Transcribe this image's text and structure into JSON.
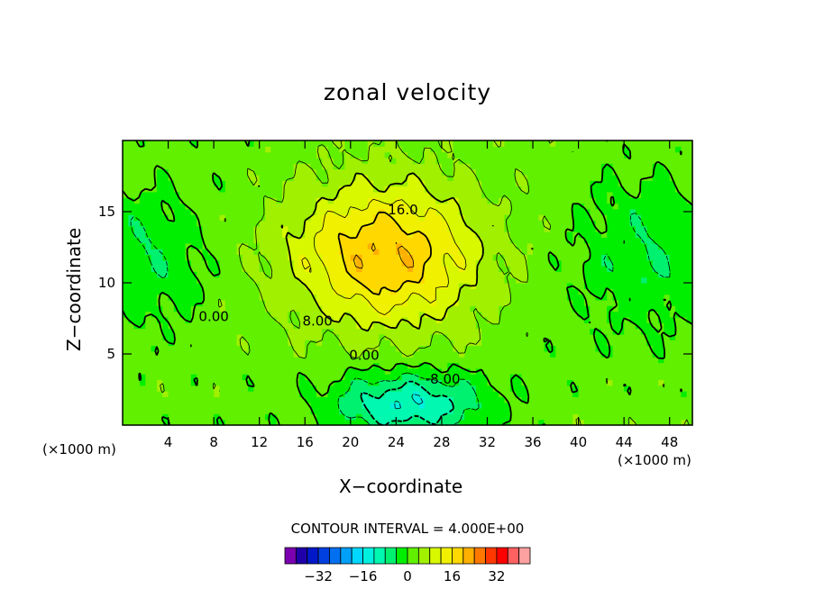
{
  "chart_data": {
    "type": "heatmap",
    "title": "zonal velocity",
    "xlabel": "X−coordinate",
    "ylabel": "Z−coordinate",
    "x_unit_label": "(×1000 m)",
    "z_unit_label": "(×1000 m)",
    "xlim": [
      0,
      50
    ],
    "ylim": [
      0,
      20
    ],
    "x_ticks": [
      4,
      8,
      12,
      16,
      20,
      24,
      28,
      32,
      36,
      40,
      44,
      48
    ],
    "y_ticks": [
      5,
      10,
      15
    ],
    "contour_interval_text": "CONTOUR INTERVAL = 4.000E+00",
    "contour_labels": [
      {
        "text": "16.0",
        "x": 24.6,
        "z": 14.8
      },
      {
        "text": "8.00",
        "x": 17.1,
        "z": 7.0
      },
      {
        "text": "0.00",
        "x": 8.0,
        "z": 7.3
      },
      {
        "text": "0.00",
        "x": 21.2,
        "z": 4.6
      },
      {
        "text": "-8.00",
        "x": 28.1,
        "z": 2.9
      }
    ],
    "colorbar": {
      "ticks": [
        -32,
        -16,
        0,
        16,
        32
      ],
      "tick_labels": [
        "−32",
        "−16",
        "0",
        "16",
        "32"
      ],
      "colors": [
        "#7b00b0",
        "#1f00a8",
        "#0018c8",
        "#0040e0",
        "#0070f0",
        "#00a0f8",
        "#00d8ff",
        "#00f0e0",
        "#00f8b0",
        "#00f070",
        "#00ee00",
        "#60f000",
        "#a0f000",
        "#d8f800",
        "#f0f000",
        "#ffd800",
        "#ffb000",
        "#ff7800",
        "#ff3800",
        "#ff0000",
        "#ff6060",
        "#ffa0a0"
      ]
    },
    "field_centers": [
      {
        "x": 23,
        "z": 12,
        "value": 20
      },
      {
        "x": 25,
        "z": 1.5,
        "value": -12
      },
      {
        "x": 2,
        "z": 12,
        "value": -4
      },
      {
        "x": 46,
        "z": 12,
        "value": -4
      }
    ]
  }
}
